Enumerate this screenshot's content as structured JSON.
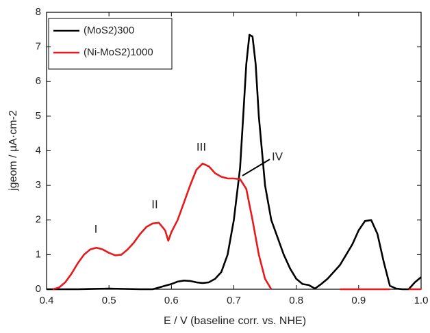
{
  "chart_data": {
    "type": "line",
    "xlabel": "E / V (baseline corr. vs. NHE)",
    "ylabel": "jgeom / µA·cm-2",
    "xlim": [
      0.4,
      1.0
    ],
    "xticks": [
      0.4,
      0.5,
      0.6,
      0.7,
      0.8,
      0.9,
      {
        "value": 1,
        "label": "1.0"
      }
    ],
    "ylim": [
      0,
      8
    ],
    "yticks": [
      0,
      1,
      2,
      3,
      4,
      5,
      6,
      7,
      8
    ],
    "legend": "upper left",
    "annotations": [
      "I",
      "II",
      "III",
      "IV"
    ],
    "series": [
      {
        "name": "(MoS2)300",
        "color": "#000000",
        "x": [
          0.4,
          0.45,
          0.5,
          0.55,
          0.57,
          0.58,
          0.59,
          0.6,
          0.61,
          0.62,
          0.63,
          0.64,
          0.65,
          0.66,
          0.67,
          0.68,
          0.69,
          0.7,
          0.71,
          0.715,
          0.72,
          0.725,
          0.73,
          0.735,
          0.74,
          0.75,
          0.76,
          0.77,
          0.78,
          0.79,
          0.8,
          0.81,
          0.82,
          0.83,
          0.84,
          0.85,
          0.86,
          0.87,
          0.88,
          0.89,
          0.9,
          0.91,
          0.92,
          0.93,
          0.94,
          0.95,
          0.96,
          0.97,
          0.98,
          0.99,
          1.0
        ],
        "values": [
          0,
          0,
          0.02,
          0,
          0,
          0.05,
          0.1,
          0.15,
          0.22,
          0.25,
          0.24,
          0.2,
          0.18,
          0.2,
          0.3,
          0.5,
          1.0,
          2.0,
          3.5,
          5.0,
          6.5,
          7.35,
          7.3,
          6.5,
          5.0,
          3.0,
          2.0,
          1.5,
          1.0,
          0.6,
          0.3,
          0.15,
          0.12,
          0.02,
          0.15,
          0.3,
          0.5,
          0.7,
          1.0,
          1.3,
          1.7,
          1.97,
          2.0,
          1.6,
          0.8,
          0.1,
          0.02,
          0,
          0,
          0.2,
          0.35
        ]
      },
      {
        "name": "(Ni-MoS2)1000",
        "color": "#e8191b",
        "x": [
          0.41,
          0.42,
          0.43,
          0.44,
          0.45,
          0.46,
          0.47,
          0.48,
          0.49,
          0.5,
          0.51,
          0.52,
          0.53,
          0.54,
          0.55,
          0.56,
          0.57,
          0.58,
          0.59,
          0.595,
          0.6,
          0.61,
          0.62,
          0.63,
          0.64,
          0.65,
          0.66,
          0.67,
          0.68,
          0.69,
          0.7,
          0.71,
          0.72,
          0.73,
          0.74,
          0.75,
          0.76,
          0.8,
          0.87,
          0.95,
          0.97,
          0.98,
          1.0
        ],
        "values": [
          0,
          0.05,
          0.2,
          0.45,
          0.75,
          1.0,
          1.15,
          1.2,
          1.15,
          1.05,
          0.98,
          1.0,
          1.15,
          1.35,
          1.6,
          1.8,
          1.9,
          1.92,
          1.7,
          1.4,
          1.65,
          2.0,
          2.5,
          3.0,
          3.45,
          3.63,
          3.55,
          3.35,
          3.25,
          3.2,
          3.2,
          3.18,
          2.9,
          2.0,
          1.0,
          0.3,
          0,
          null,
          0,
          0,
          null,
          0,
          0
        ]
      }
    ]
  }
}
